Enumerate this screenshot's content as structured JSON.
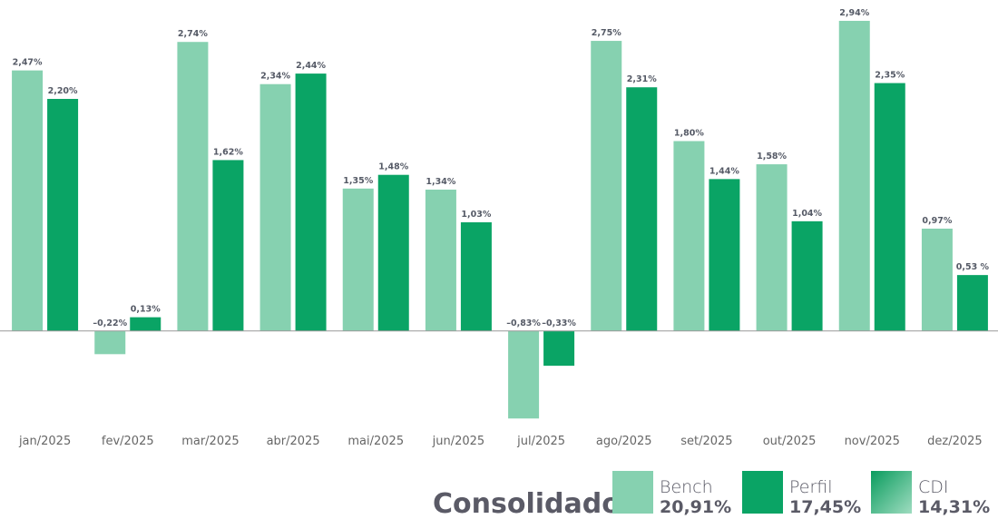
{
  "chart_data": {
    "type": "bar",
    "categories": [
      "jan/2025",
      "fev/2025",
      "mar/2025",
      "abr/2025",
      "mai/2025",
      "jun/2025",
      "jul/2025",
      "ago/2025",
      "set/2025",
      "out/2025",
      "nov/2025",
      "dez/2025"
    ],
    "series": [
      {
        "name": "Bench",
        "color": "#86d1b0",
        "values": [
          2.47,
          -0.22,
          2.74,
          2.34,
          1.35,
          1.34,
          -0.83,
          2.75,
          1.8,
          1.58,
          2.94,
          0.97
        ],
        "value_labels": [
          "2,47%",
          "–0,22%",
          "2,74%",
          "2,34%",
          "1,35%",
          "1,34%",
          "–0,83%",
          "2,75%",
          "1,80%",
          "1,58%",
          "2,94%",
          "0,97%"
        ],
        "total": 20.91,
        "total_label": "20,91%"
      },
      {
        "name": "Perfil",
        "color": "#0aa465",
        "values": [
          2.2,
          0.13,
          1.62,
          2.44,
          1.48,
          1.03,
          -0.33,
          2.31,
          1.44,
          1.04,
          2.35,
          0.53
        ],
        "value_labels": [
          "2,20%",
          "0,13%",
          "1,62%",
          "2,44%",
          "1,48%",
          "1,03%",
          "–0,33%",
          "2,31%",
          "1,44%",
          "1,04%",
          "2,35%",
          "0,53 %"
        ],
        "total": 17.45,
        "total_label": "17,45%"
      }
    ],
    "legend_title": "Consolidado",
    "benchmark": {
      "name": "CDI",
      "total": 14.31,
      "total_label": "14,31%",
      "gradient": [
        "#0a9c5e",
        "#9fdcc0"
      ]
    },
    "ylim": [
      -1,
      3
    ]
  }
}
